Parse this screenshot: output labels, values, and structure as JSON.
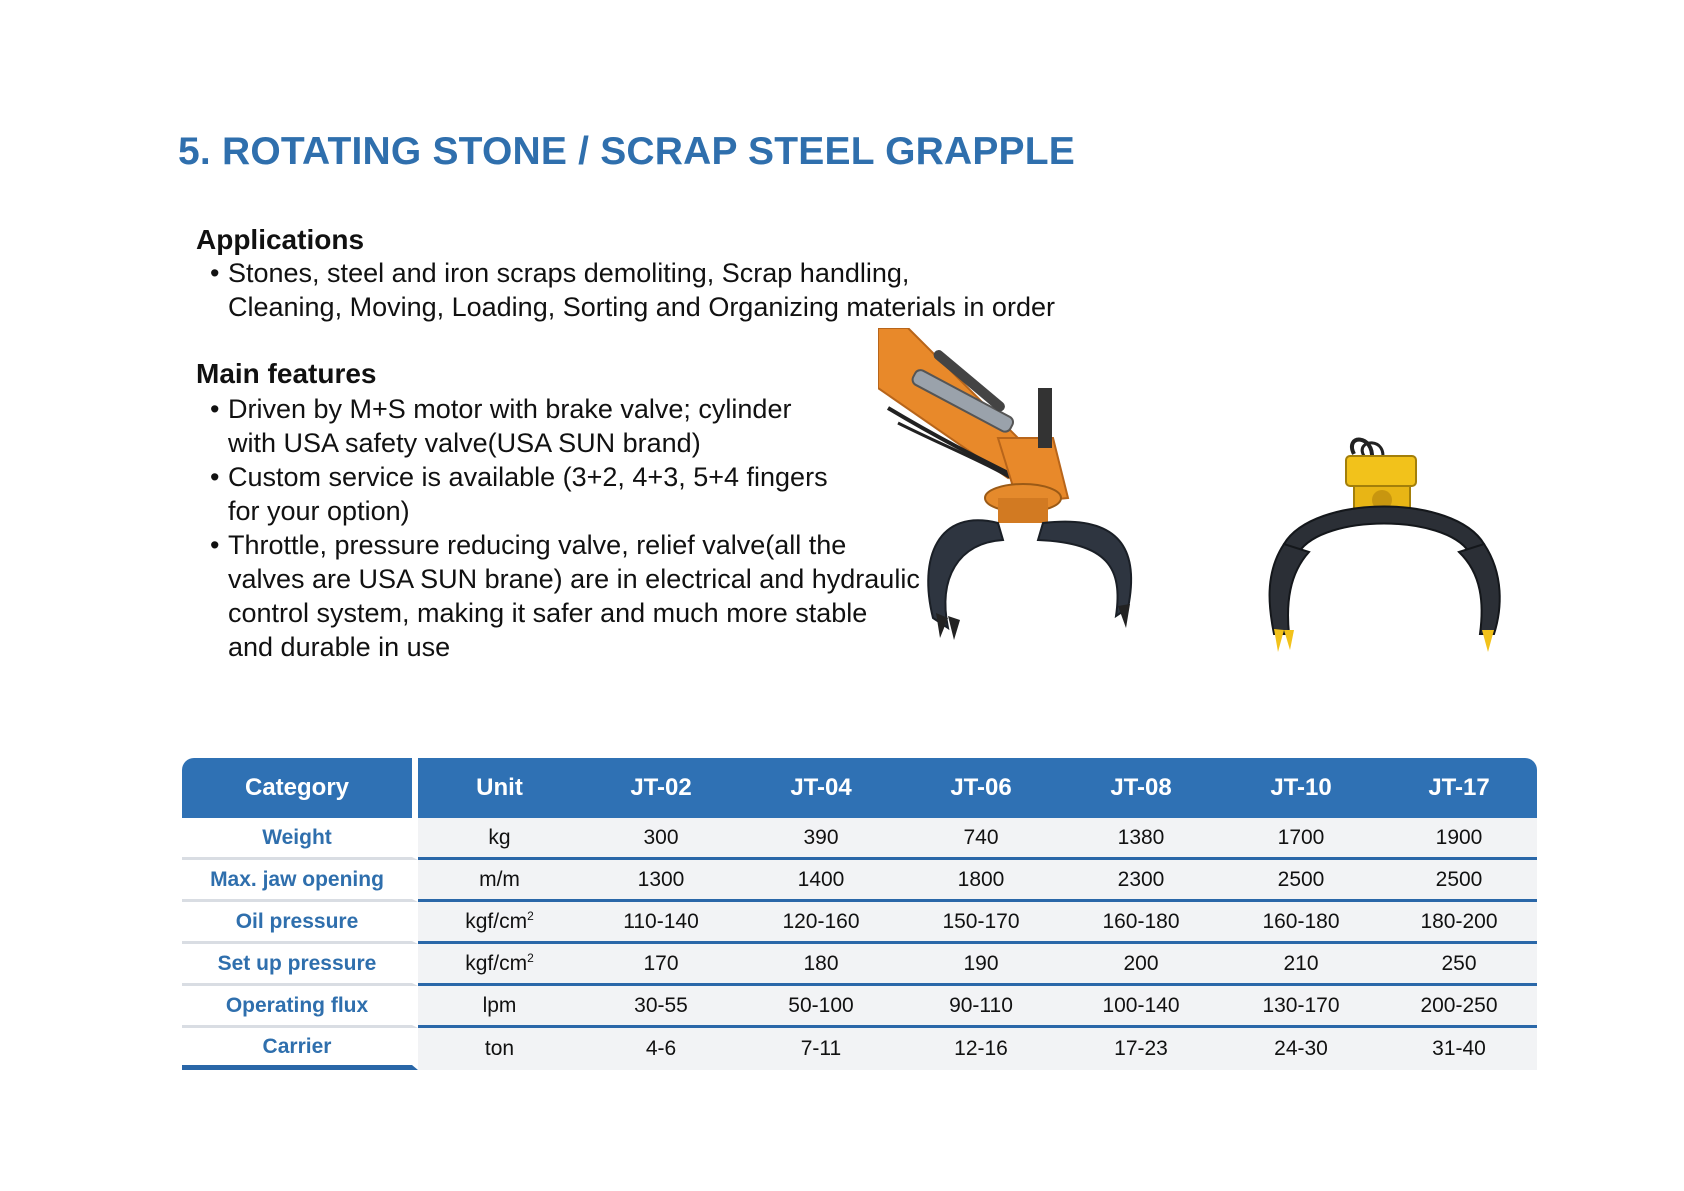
{
  "title": "5. ROTATING STONE / SCRAP STEEL GRAPPLE",
  "applications": {
    "heading": "Applications",
    "bullets": [
      {
        "line1": "Stones, steel and iron scraps demoliting, Scrap handling,",
        "line2": "Cleaning, Moving, Loading, Sorting and Organizing materials in order"
      }
    ]
  },
  "features": {
    "heading": "Main features",
    "bullets": [
      {
        "line1": "Driven by M+S motor with brake valve; cylinder",
        "line2": "with USA safety valve(USA SUN brand)"
      },
      {
        "line1": "Custom service is available (3+2, 4+3, 5+4 fingers",
        "line2": "for your option)"
      },
      {
        "line1": "Throttle, pressure reducing valve, relief valve(all the",
        "line2": "valves are USA SUN brane) are in electrical and hydraulic",
        "line3": "control system, making it safer and much more stable",
        "line4": "and durable in use"
      }
    ]
  },
  "images": {
    "left": "excavator-arm-grapple-photo",
    "right": "rotating-grapple-photo"
  },
  "colors": {
    "title": "#2f6fad",
    "table_header": "#2f71b4",
    "row_rule": "#2a67a8",
    "grapple_orange": "#e8892a",
    "grapple_yellow": "#f2c21b",
    "grapple_steel": "#2e3540"
  },
  "table": {
    "headers": [
      "Category",
      "Unit",
      "JT-02",
      "JT-04",
      "JT-06",
      "JT-08",
      "JT-10",
      "JT-17"
    ],
    "rows": [
      {
        "category": "Weight",
        "unit": "kg",
        "unit_sup": "",
        "values": [
          "300",
          "390",
          "740",
          "1380",
          "1700",
          "1900"
        ]
      },
      {
        "category": "Max. jaw opening",
        "unit": "m/m",
        "unit_sup": "",
        "values": [
          "1300",
          "1400",
          "1800",
          "2300",
          "2500",
          "2500"
        ]
      },
      {
        "category": "Oil pressure",
        "unit": "kgf/cm",
        "unit_sup": "2",
        "values": [
          "110-140",
          "120-160",
          "150-170",
          "160-180",
          "160-180",
          "180-200"
        ]
      },
      {
        "category": "Set up pressure",
        "unit": "kgf/cm",
        "unit_sup": "2",
        "values": [
          "170",
          "180",
          "190",
          "200",
          "210",
          "250"
        ]
      },
      {
        "category": "Operating flux",
        "unit": "lpm",
        "unit_sup": "",
        "values": [
          "30-55",
          "50-100",
          "90-110",
          "100-140",
          "130-170",
          "200-250"
        ]
      },
      {
        "category": "Carrier",
        "unit": "ton",
        "unit_sup": "",
        "values": [
          "4-6",
          "7-11",
          "12-16",
          "17-23",
          "24-30",
          "31-40"
        ]
      }
    ]
  }
}
